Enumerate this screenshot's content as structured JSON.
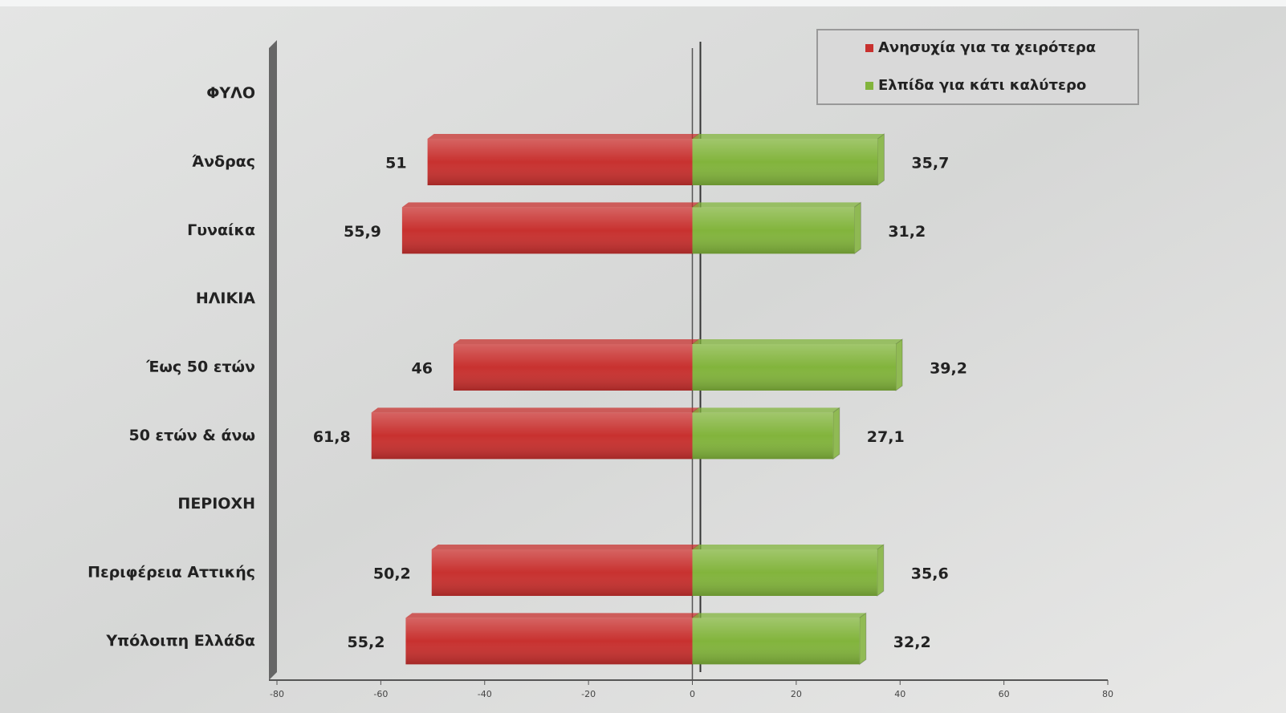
{
  "chart_data": {
    "type": "bar",
    "orientation": "horizontal",
    "categories": [
      "ΦΥΛΟ",
      "Άνδρας",
      "Γυναίκα",
      "ΗΛΙΚΙΑ",
      "Έως 50 ετών",
      "50 ετών & άνω",
      "ΠΕΡΙΟΧΗ",
      "Περιφέρεια Αττικής",
      "Υπόλοιπη Ελλάδα"
    ],
    "series": [
      {
        "name": "Ανησυχία για τα χειρότερα",
        "color": "#c8312f",
        "values": [
          null,
          -51,
          -55.9,
          null,
          -46,
          -61.8,
          null,
          -50.2,
          -55.2
        ],
        "value_labels": [
          null,
          "51",
          "55,9",
          null,
          "46",
          "61,8",
          null,
          "50,2",
          "55,2"
        ]
      },
      {
        "name": "Ελπίδα για κάτι καλύτερο",
        "color": "#82b43c",
        "values": [
          null,
          35.7,
          31.2,
          null,
          39.2,
          27.1,
          null,
          35.6,
          32.2
        ],
        "value_labels": [
          null,
          "35,7",
          "31,2",
          null,
          "39,2",
          "27,1",
          null,
          "35,6",
          "32,2"
        ]
      }
    ],
    "xlim": [
      -80,
      80
    ],
    "xticks": [
      -80,
      -60,
      -40,
      -20,
      0,
      20,
      40,
      60,
      80
    ],
    "legend": "top-right"
  }
}
